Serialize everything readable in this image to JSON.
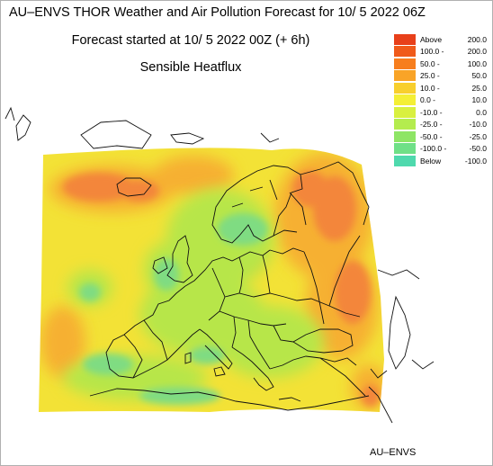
{
  "titles": {
    "line1": "AU–ENVS THOR Weather and Air Pollution Forecast for 10/ 5 2022  06Z",
    "line2": "Forecast started at 10/ 5 2022  00Z (+ 6h)",
    "line3": "Sensible Heatflux"
  },
  "legend": [
    {
      "label_a": "Above",
      "label_b": "200.0",
      "color": "#e8401a"
    },
    {
      "label_a": "100.0 -",
      "label_b": "200.0",
      "color": "#f05a1a"
    },
    {
      "label_a": "50.0 -",
      "label_b": "100.0",
      "color": "#f77e1e"
    },
    {
      "label_a": "25.0 -",
      "label_b": "50.0",
      "color": "#f9a427"
    },
    {
      "label_a": "10.0 -",
      "label_b": "25.0",
      "color": "#f8cf2d"
    },
    {
      "label_a": "0.0 -",
      "label_b": "10.0",
      "color": "#f4ef35"
    },
    {
      "label_a": "-10.0 -",
      "label_b": "0.0",
      "color": "#d9f03f"
    },
    {
      "label_a": "-25.0 -",
      "label_b": "-10.0",
      "color": "#b4ec4e"
    },
    {
      "label_a": "-50.0 -",
      "label_b": "-25.0",
      "color": "#8ee565"
    },
    {
      "label_a": "-100.0 -",
      "label_b": "-50.0",
      "color": "#6fe087"
    },
    {
      "label_a": "Below",
      "label_b": "-100.0",
      "color": "#4fd9ad"
    }
  ],
  "map": {
    "region": "Europe",
    "field_colors": {
      "ocean": "#f3e236",
      "warm_strong": "#f3863a",
      "warm": "#f6b030",
      "cool": "#b7e64a",
      "cold": "#7fdc82",
      "coast": "#111111"
    }
  },
  "footer": {
    "credit": "AU–ENVS"
  }
}
